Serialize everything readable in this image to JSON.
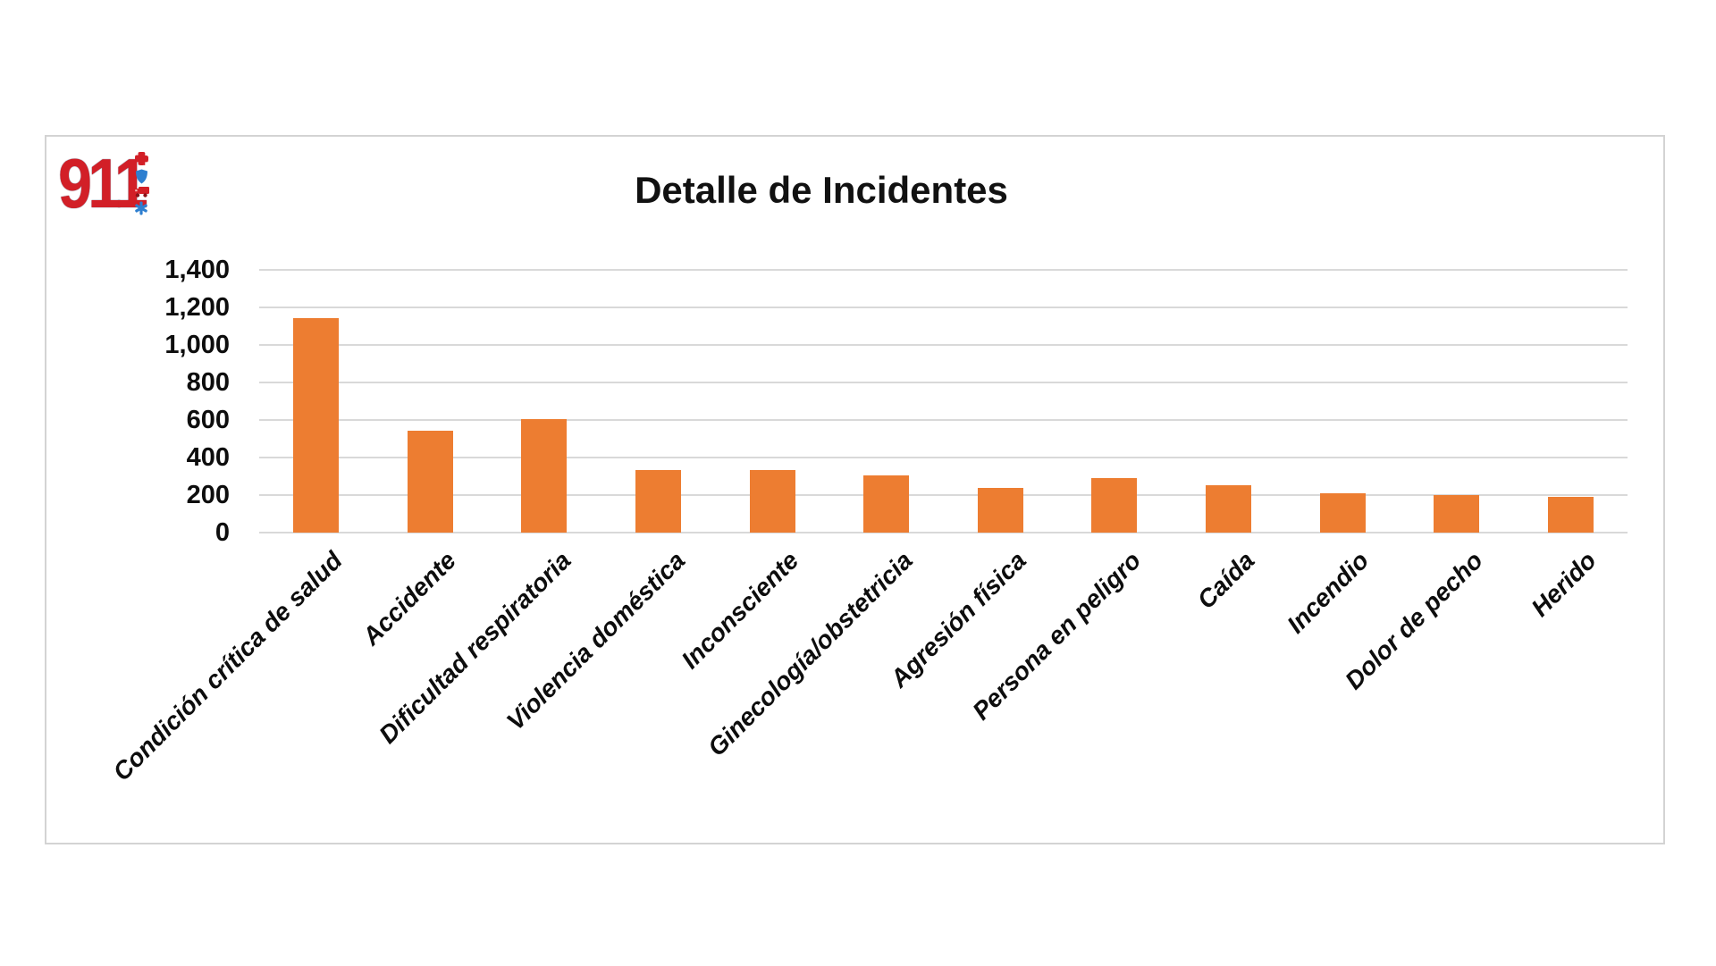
{
  "logo": {
    "text": "911",
    "color": "#d21f27",
    "icon_red": "#d21f27",
    "icon_blue": "#2e7fd0",
    "icons": [
      "cross-icon",
      "shield-icon",
      "truck-icon",
      "star-of-life-icon"
    ]
  },
  "chart_data": {
    "type": "bar",
    "title": "Detalle de Incidentes",
    "categories": [
      "Condición crítica de salud",
      "Accidente",
      "Dificultad respiratoria",
      "Violencia doméstica",
      "Inconsciente",
      "Ginecología/obstetricia",
      "Agresión física",
      "Persona en peligro",
      "Caída",
      "Incendio",
      "Dolor de pecho",
      "Herido"
    ],
    "values": [
      1145,
      545,
      605,
      335,
      335,
      305,
      240,
      290,
      250,
      210,
      200,
      190
    ],
    "xlabel": "",
    "ylabel": "",
    "ylim": [
      0,
      1400
    ],
    "ytick_step": 200,
    "ytick_labels": [
      "0",
      "200",
      "400",
      "600",
      "800",
      "1,000",
      "1,200",
      "1,400"
    ],
    "grid": "horizontal",
    "legend_position": "none",
    "bar_color": "#ED7D31",
    "gridline_color": "#d9d9d9",
    "text_color": "#0d0d0d"
  }
}
